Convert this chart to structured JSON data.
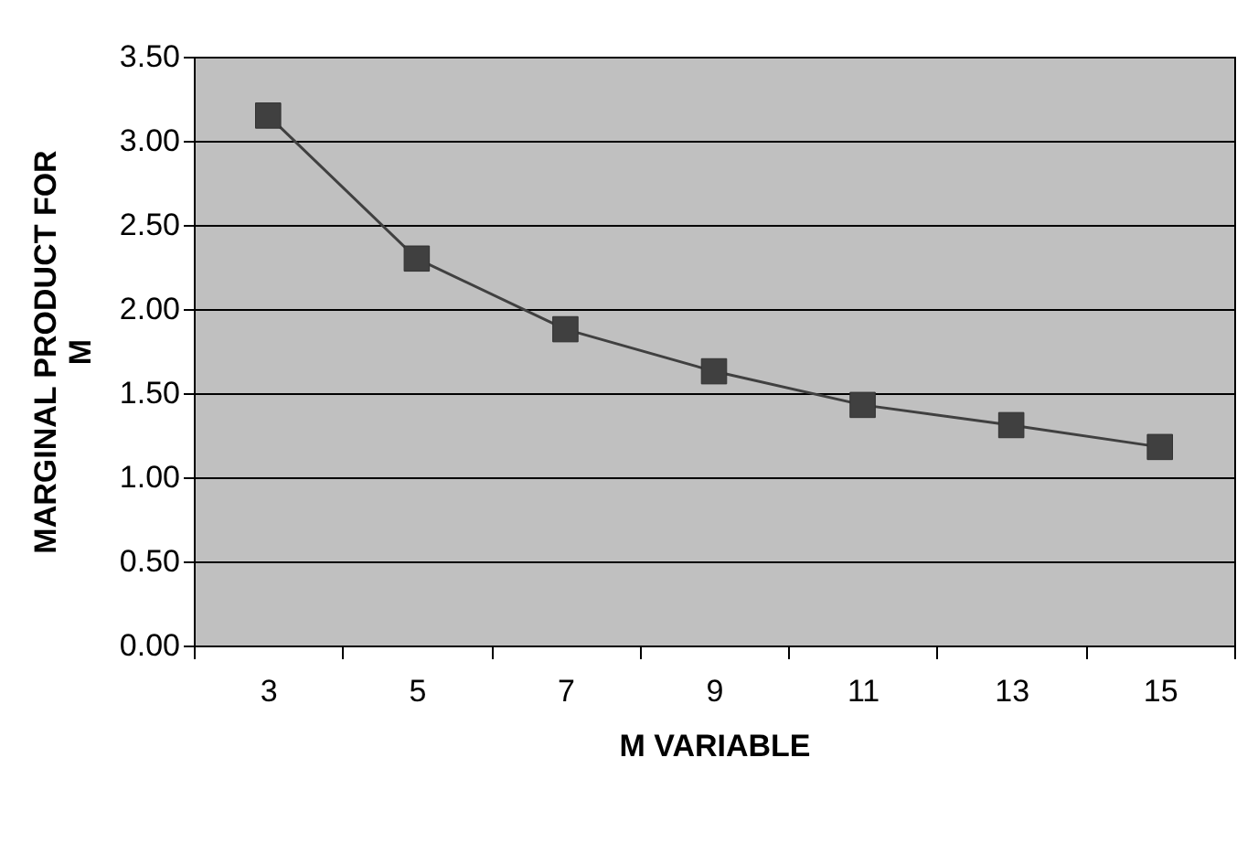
{
  "chart_data": {
    "type": "line",
    "xlabel": "M VARIABLE",
    "ylabel": "MARGINAL PRODUCT FOR M",
    "categories": [
      "3",
      "5",
      "7",
      "9",
      "11",
      "13",
      "15"
    ],
    "series": [
      {
        "color": "#404040",
        "values": [
          3.15,
          2.3,
          1.88,
          1.63,
          1.43,
          1.31,
          1.18
        ]
      }
    ],
    "ylim": [
      0,
      3.5
    ],
    "yticks": [
      {
        "value": 0,
        "label": "0.00"
      },
      {
        "value": 0.5,
        "label": "0.50"
      },
      {
        "value": 1,
        "label": "1.00"
      },
      {
        "value": 1.5,
        "label": "1.50"
      },
      {
        "value": 2,
        "label": "2.00"
      },
      {
        "value": 2.5,
        "label": "2.50"
      },
      {
        "value": 3,
        "label": "3.00"
      },
      {
        "value": 3.5,
        "label": "3.50"
      }
    ],
    "grid": "y",
    "legend": false,
    "marker": "square",
    "line_style": "solid"
  }
}
